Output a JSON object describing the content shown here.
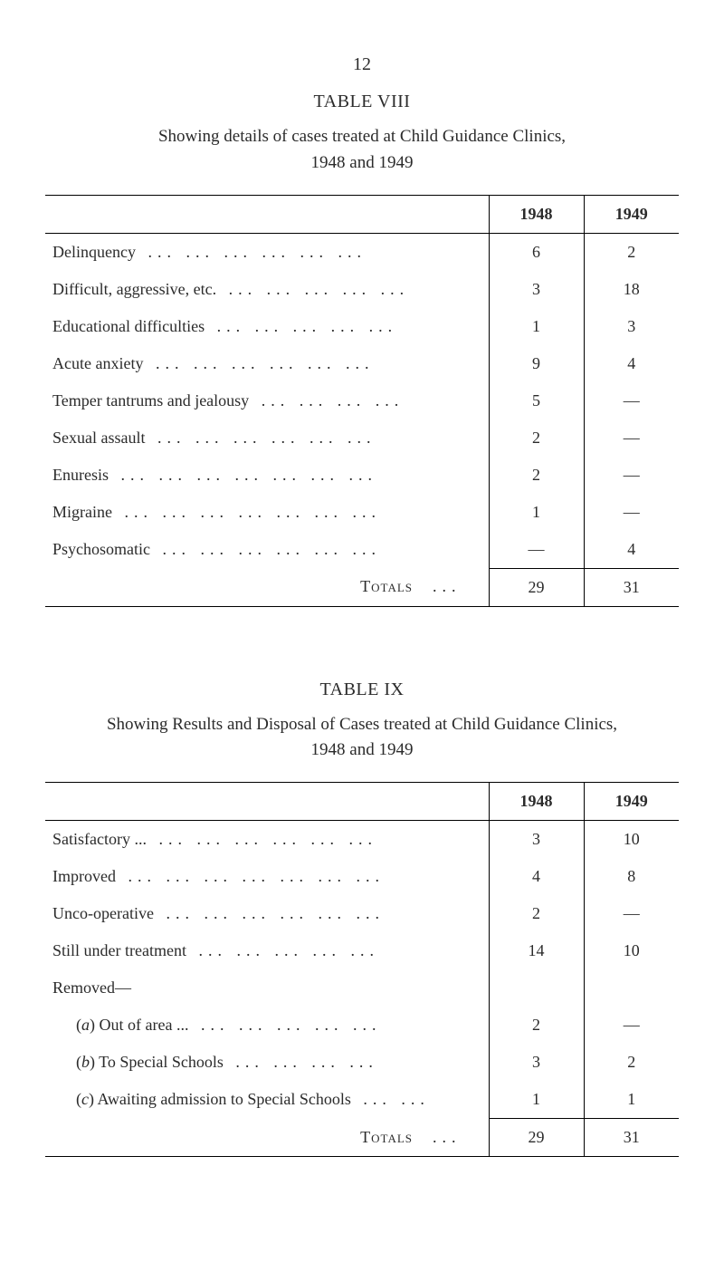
{
  "page_number": "12",
  "table8": {
    "title": "TABLE VIII",
    "caption": "Showing details of cases treated at Child Guidance Clinics,",
    "subcaption": "1948 and 1949",
    "col1": "1948",
    "col2": "1949",
    "rows": [
      {
        "label": "Delinquency",
        "indent": false,
        "dots": 6,
        "v1": "6",
        "v2": "2"
      },
      {
        "label": "Difficult, aggressive, etc.",
        "indent": false,
        "dots": 5,
        "v1": "3",
        "v2": "18"
      },
      {
        "label": "Educational difficulties",
        "indent": false,
        "dots": 5,
        "v1": "1",
        "v2": "3"
      },
      {
        "label": "Acute anxiety",
        "indent": false,
        "dots": 6,
        "v1": "9",
        "v2": "4"
      },
      {
        "label": "Temper tantrums and jealousy",
        "indent": false,
        "dots": 4,
        "v1": "5",
        "v2": "—"
      },
      {
        "label": "Sexual assault",
        "indent": false,
        "dots": 6,
        "v1": "2",
        "v2": "—"
      },
      {
        "label": "Enuresis",
        "indent": false,
        "dots": 7,
        "v1": "2",
        "v2": "—"
      },
      {
        "label": "Migraine",
        "indent": false,
        "dots": 7,
        "v1": "1",
        "v2": "—"
      },
      {
        "label": "Psychosomatic",
        "indent": false,
        "dots": 6,
        "v1": "—",
        "v2": "4"
      }
    ],
    "totals_label": "Totals",
    "totals_dots": "...",
    "t1": "29",
    "t2": "31"
  },
  "table9": {
    "title": "TABLE IX",
    "caption": "Showing Results and Disposal of Cases treated at Child Guidance Clinics,",
    "subcaption": "1948 and 1949",
    "col1": "1948",
    "col2": "1949",
    "rows": [
      {
        "label": "Satisfactory ...",
        "indent": false,
        "dots": 6,
        "v1": "3",
        "v2": "10"
      },
      {
        "label": "Improved",
        "indent": false,
        "dots": 7,
        "v1": "4",
        "v2": "8"
      },
      {
        "label": "Unco-operative",
        "indent": false,
        "dots": 6,
        "v1": "2",
        "v2": "—"
      },
      {
        "label": "Still under treatment",
        "indent": false,
        "dots": 5,
        "v1": "14",
        "v2": "10"
      },
      {
        "label": "Removed—",
        "indent": false,
        "dots": 0,
        "v1": "",
        "v2": ""
      },
      {
        "label": "(a) Out of area ...",
        "italicchar": "a",
        "plain": " Out of area ...",
        "indent": true,
        "dots": 5,
        "v1": "2",
        "v2": "—"
      },
      {
        "label": "(b) To Special Schools",
        "italicchar": "b",
        "plain": " To Special Schools",
        "indent": true,
        "dots": 4,
        "v1": "3",
        "v2": "2"
      },
      {
        "label": "(c) Awaiting admission to Special Schools",
        "italicchar": "c",
        "plain": " Awaiting admission to Special Schools",
        "indent": true,
        "dots": 2,
        "v1": "1",
        "v2": "1"
      }
    ],
    "totals_label": "Totals",
    "totals_dots": "...",
    "t1": "29",
    "t2": "31"
  }
}
